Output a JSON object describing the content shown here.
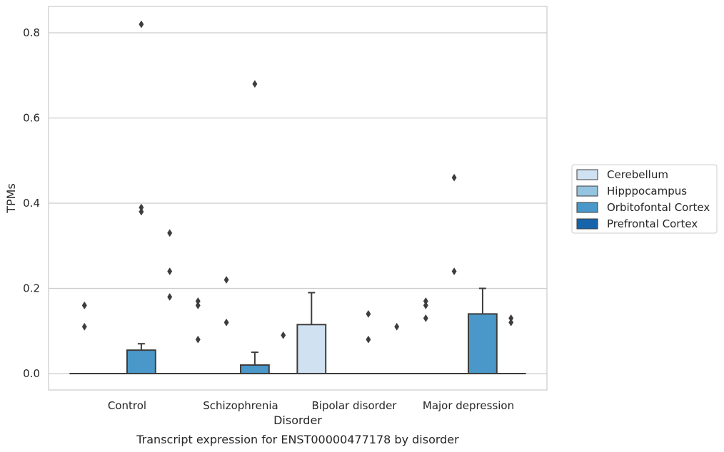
{
  "chart_data": {
    "type": "box",
    "xlabel": "Disorder",
    "ylabel": "TPMs",
    "caption": "Transcript expression for ENST00000477178 by disorder",
    "categories": [
      "Control",
      "Schizophrenia",
      "Bipolar disorder",
      "Major depression"
    ],
    "ylim": [
      -0.04,
      0.86
    ],
    "yticks": [
      {
        "value": 0.0,
        "label": "0.0"
      },
      {
        "value": 0.2,
        "label": "0.2"
      },
      {
        "value": 0.4,
        "label": "0.4"
      },
      {
        "value": 0.6,
        "label": "0.6"
      },
      {
        "value": 0.8,
        "label": "0.8"
      }
    ],
    "grid": true,
    "legend_position": "right",
    "series": [
      {
        "name": "Cerebellum",
        "color": "#d0e1f2"
      },
      {
        "name": "Hipppocampus",
        "color": "#94c4df"
      },
      {
        "name": "Orbitofontal Cortex",
        "color": "#4a98c9"
      },
      {
        "name": "Prefrontal Cortex",
        "color": "#1764ab"
      }
    ],
    "boxes": [
      {
        "category": 0,
        "series": 0,
        "q1": 0,
        "median": 0,
        "q3": 0,
        "whisker_low": 0,
        "whisker_high": 0,
        "outliers": [
          0.11,
          0.16,
          0.16
        ]
      },
      {
        "category": 0,
        "series": 1,
        "q1": 0,
        "median": 0,
        "q3": 0,
        "whisker_low": 0,
        "whisker_high": 0,
        "outliers": []
      },
      {
        "category": 0,
        "series": 2,
        "q1": 0,
        "median": 0,
        "q3": 0.055,
        "whisker_low": 0,
        "whisker_high": 0.07,
        "outliers": [
          0.82,
          0.39,
          0.38
        ]
      },
      {
        "category": 0,
        "series": 3,
        "q1": 0,
        "median": 0,
        "q3": 0,
        "whisker_low": 0,
        "whisker_high": 0,
        "outliers": [
          0.33,
          0.24,
          0.18
        ]
      },
      {
        "category": 1,
        "series": 0,
        "q1": 0,
        "median": 0,
        "q3": 0,
        "whisker_low": 0,
        "whisker_high": 0,
        "outliers": [
          0.17,
          0.16,
          0.08
        ]
      },
      {
        "category": 1,
        "series": 1,
        "q1": 0,
        "median": 0,
        "q3": 0,
        "whisker_low": 0,
        "whisker_high": 0,
        "outliers": [
          0.22,
          0.12
        ]
      },
      {
        "category": 1,
        "series": 2,
        "q1": 0,
        "median": 0,
        "q3": 0.02,
        "whisker_low": 0,
        "whisker_high": 0.05,
        "outliers": [
          0.68
        ]
      },
      {
        "category": 1,
        "series": 3,
        "q1": 0,
        "median": 0,
        "q3": 0,
        "whisker_low": 0,
        "whisker_high": 0,
        "outliers": [
          0.09
        ]
      },
      {
        "category": 2,
        "series": 0,
        "q1": 0,
        "median": 0,
        "q3": 0.115,
        "whisker_low": 0,
        "whisker_high": 0.19,
        "outliers": []
      },
      {
        "category": 2,
        "series": 1,
        "q1": 0,
        "median": 0,
        "q3": 0,
        "whisker_low": 0,
        "whisker_high": 0,
        "outliers": []
      },
      {
        "category": 2,
        "series": 2,
        "q1": 0,
        "median": 0,
        "q3": 0,
        "whisker_low": 0,
        "whisker_high": 0,
        "outliers": [
          0.14,
          0.08
        ]
      },
      {
        "category": 2,
        "series": 3,
        "q1": 0,
        "median": 0,
        "q3": 0,
        "whisker_low": 0,
        "whisker_high": 0,
        "outliers": [
          0.11
        ]
      },
      {
        "category": 3,
        "series": 0,
        "q1": 0,
        "median": 0,
        "q3": 0,
        "whisker_low": 0,
        "whisker_high": 0,
        "outliers": [
          0.17,
          0.16,
          0.13
        ]
      },
      {
        "category": 3,
        "series": 1,
        "q1": 0,
        "median": 0,
        "q3": 0,
        "whisker_low": 0,
        "whisker_high": 0,
        "outliers": [
          0.46,
          0.24
        ]
      },
      {
        "category": 3,
        "series": 2,
        "q1": 0,
        "median": 0,
        "q3": 0.14,
        "whisker_low": 0,
        "whisker_high": 0.2,
        "outliers": []
      },
      {
        "category": 3,
        "series": 3,
        "q1": 0,
        "median": 0,
        "q3": 0,
        "whisker_low": 0,
        "whisker_high": 0,
        "outliers": [
          0.13,
          0.12
        ]
      }
    ]
  }
}
